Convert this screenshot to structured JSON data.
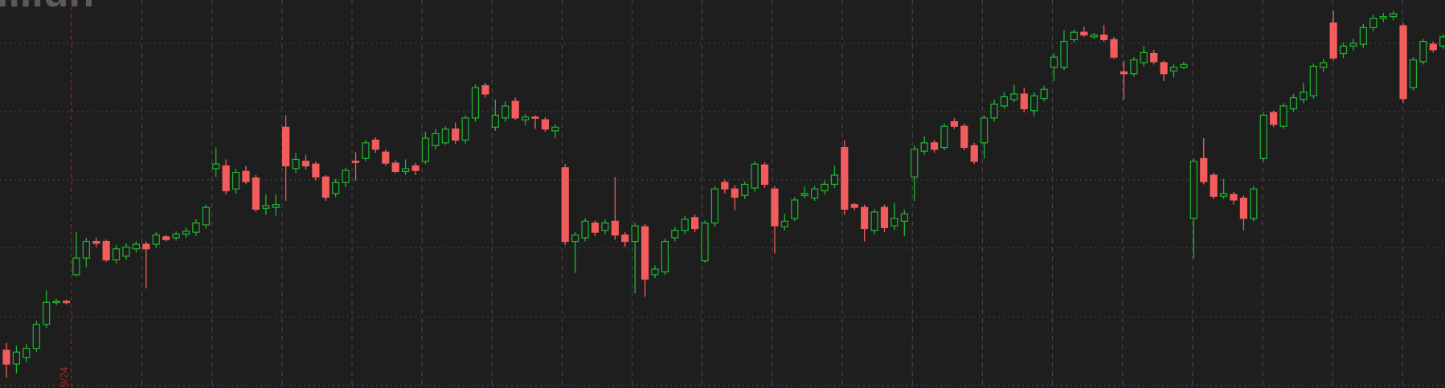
{
  "chart_data": {
    "type": "candlestick",
    "watermark": "illiun",
    "marker_label": "9/24",
    "up_color": "#1fb82f",
    "down_color": "#f25c5c",
    "grid": true,
    "ylim": [
      -3,
      418
    ],
    "yticks": [
      0,
      74,
      149,
      223,
      297,
      371
    ],
    "open": [
      38,
      23,
      30,
      40,
      66,
      90,
      91,
      120,
      138,
      156,
      156,
      136,
      140,
      148,
      153,
      153,
      161,
      160,
      164,
      166,
      174,
      235,
      238,
      213,
      232,
      225,
      192,
      193,
      280,
      235,
      243,
      240,
      226,
      208,
      220,
      243,
      246,
      266,
      253,
      241,
      232,
      238,
      243,
      260,
      263,
      278,
      266,
      290,
      325,
      280,
      290,
      308,
      288,
      291,
      288,
      276,
      236,
      156,
      160,
      176,
      168,
      178,
      163,
      156,
      172,
      120,
      123,
      160,
      168,
      182,
      135,
      176,
      220,
      213,
      206,
      214,
      239,
      213,
      172,
      181,
      206,
      203,
      211,
      218,
      258,
      196,
      193,
      168,
      193,
      173,
      178,
      226,
      254,
      263,
      258,
      286,
      281,
      260,
      263,
      290,
      303,
      310,
      316,
      298,
      311,
      345,
      345,
      375,
      383,
      378,
      380,
      375,
      340,
      338,
      350,
      360,
      350,
      341,
      345,
      181,
      246,
      228,
      205,
      207,
      203,
      181,
      246,
      296,
      281,
      300,
      310,
      314,
      345,
      393,
      360,
      368,
      370,
      388,
      398,
      400,
      390,
      323,
      351,
      370,
      368
    ],
    "high": [
      46,
      43,
      45,
      70,
      103,
      94,
      93,
      166,
      160,
      160,
      158,
      152,
      154,
      156,
      156,
      166,
      163,
      167,
      171,
      180,
      196,
      258,
      245,
      235,
      238,
      228,
      207,
      207,
      293,
      252,
      250,
      243,
      228,
      224,
      236,
      253,
      266,
      269,
      256,
      244,
      245,
      241,
      275,
      278,
      281,
      285,
      293,
      326,
      328,
      310,
      308,
      312,
      294,
      293,
      291,
      283,
      240,
      166,
      181,
      179,
      180,
      226,
      166,
      176,
      175,
      130,
      159,
      172,
      184,
      185,
      179,
      216,
      223,
      217,
      221,
      243,
      242,
      216,
      186,
      204,
      216,
      216,
      222,
      238,
      266,
      198,
      196,
      191,
      196,
      198,
      190,
      260,
      270,
      266,
      284,
      290,
      284,
      263,
      293,
      310,
      318,
      326,
      323,
      318,
      325,
      360,
      385,
      386,
      389,
      382,
      391,
      378,
      352,
      356,
      368,
      364,
      352,
      348,
      351,
      246,
      268,
      231,
      224,
      210,
      206,
      216,
      296,
      298,
      306,
      316,
      328,
      349,
      354,
      406,
      372,
      376,
      392,
      402,
      404,
      406,
      393,
      356,
      376,
      373,
      381
    ],
    "low": [
      8,
      13,
      25,
      36,
      62,
      87,
      88,
      118,
      128,
      150,
      134,
      132,
      136,
      144,
      105,
      149,
      156,
      157,
      160,
      162,
      170,
      226,
      207,
      208,
      218,
      188,
      185,
      184,
      200,
      230,
      234,
      222,
      200,
      204,
      215,
      222,
      243,
      252,
      238,
      230,
      228,
      228,
      240,
      256,
      261,
      262,
      262,
      286,
      312,
      276,
      286,
      288,
      282,
      278,
      275,
      268,
      152,
      122,
      156,
      162,
      164,
      158,
      150,
      100,
      96,
      116,
      120,
      156,
      164,
      166,
      133,
      172,
      208,
      190,
      202,
      210,
      214,
      143,
      168,
      178,
      203,
      200,
      207,
      214,
      185,
      190,
      156,
      164,
      166,
      168,
      162,
      200,
      250,
      252,
      255,
      278,
      255,
      240,
      246,
      286,
      300,
      307,
      296,
      292,
      308,
      330,
      342,
      372,
      378,
      376,
      373,
      354,
      310,
      335,
      346,
      348,
      330,
      334,
      343,
      138,
      218,
      202,
      202,
      196,
      168,
      178,
      243,
      280,
      278,
      297,
      306,
      311,
      340,
      352,
      355,
      363,
      366,
      384,
      394,
      396,
      306,
      320,
      348,
      361,
      365
    ],
    "close": [
      23,
      36,
      40,
      66,
      90,
      91,
      90,
      138,
      156,
      154,
      136,
      148,
      150,
      153,
      148,
      163,
      158,
      164,
      167,
      176,
      193,
      240,
      211,
      231,
      221,
      191,
      195,
      196,
      238,
      245,
      238,
      226,
      204,
      220,
      233,
      242,
      263,
      256,
      241,
      232,
      235,
      233,
      268,
      273,
      278,
      266,
      290,
      323,
      316,
      293,
      303,
      290,
      291,
      290,
      278,
      280,
      156,
      163,
      178,
      166,
      176,
      163,
      156,
      173,
      115,
      126,
      156,
      168,
      180,
      170,
      176,
      213,
      213,
      204,
      218,
      240,
      218,
      173,
      178,
      201,
      208,
      213,
      218,
      228,
      191,
      193,
      170,
      188,
      171,
      181,
      186,
      256,
      263,
      256,
      281,
      281,
      258,
      243,
      290,
      305,
      313,
      316,
      300,
      314,
      321,
      356,
      373,
      383,
      380,
      380,
      375,
      356,
      338,
      353,
      361,
      351,
      338,
      345,
      348,
      243,
      221,
      205,
      208,
      201,
      181,
      213,
      293,
      283,
      303,
      312,
      318,
      346,
      350,
      355,
      368,
      371,
      388,
      398,
      400,
      403,
      311,
      353,
      373,
      364,
      378
    ]
  }
}
